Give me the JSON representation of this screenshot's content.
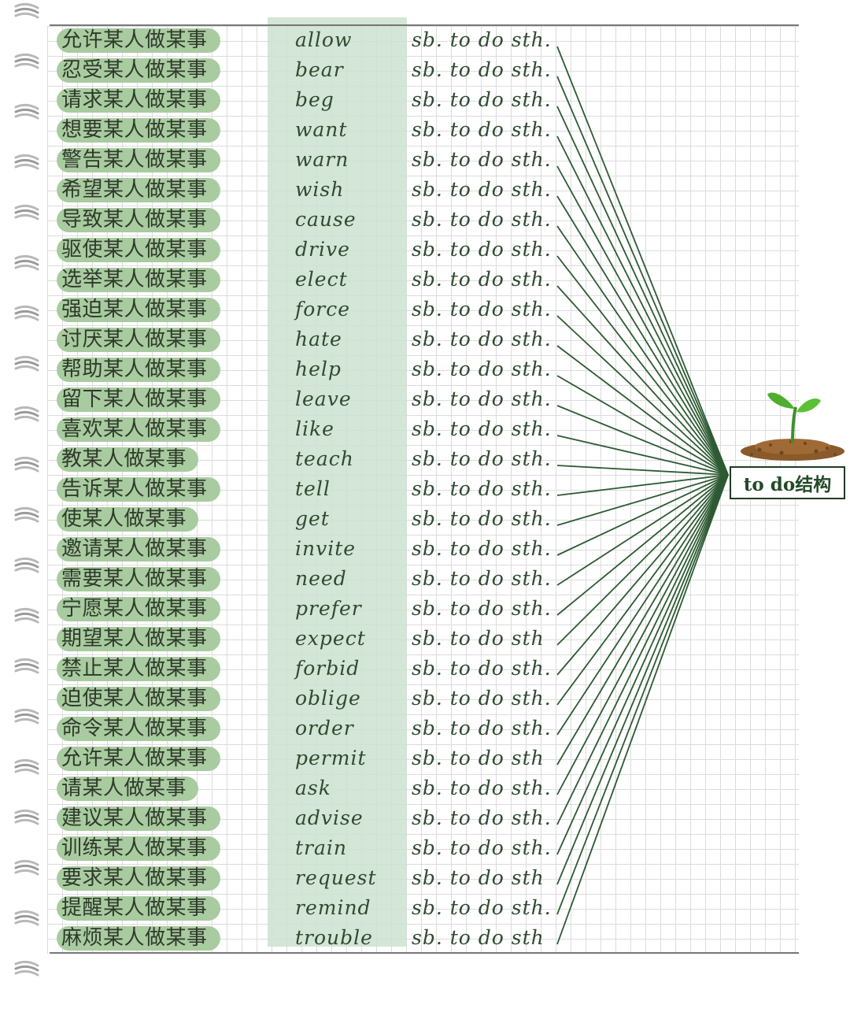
{
  "rows": [
    {
      "cn": "允许某人做某事",
      "verb": "allow",
      "tail": "sb. to do sth."
    },
    {
      "cn": "忍受某人做某事",
      "verb": "bear",
      "tail": "sb. to do sth."
    },
    {
      "cn": "请求某人做某事",
      "verb": "beg",
      "tail": "sb. to do sth."
    },
    {
      "cn": "想要某人做某事",
      "verb": "want",
      "tail": "sb. to do sth."
    },
    {
      "cn": "警告某人做某事",
      "verb": "warn",
      "tail": "sb. to do sth."
    },
    {
      "cn": "希望某人做某事",
      "verb": "wish",
      "tail": "sb. to do sth."
    },
    {
      "cn": "导致某人做某事",
      "verb": "cause",
      "tail": "sb. to do sth."
    },
    {
      "cn": "驱使某人做某事",
      "verb": "drive",
      "tail": "sb. to do sth."
    },
    {
      "cn": "选举某人做某事",
      "verb": "elect",
      "tail": "sb. to do sth."
    },
    {
      "cn": "强迫某人做某事",
      "verb": "force",
      "tail": "sb. to do sth."
    },
    {
      "cn": "讨厌某人做某事",
      "verb": "hate",
      "tail": "sb. to do sth."
    },
    {
      "cn": "帮助某人做某事",
      "verb": "help",
      "tail": "sb. to do sth."
    },
    {
      "cn": "留下某人做某事",
      "verb": "leave",
      "tail": "sb. to do sth."
    },
    {
      "cn": "喜欢某人做某事",
      "verb": "like",
      "tail": "sb. to do sth."
    },
    {
      "cn": "教某人做某事",
      "verb": "teach",
      "tail": "sb. to do sth."
    },
    {
      "cn": "告诉某人做某事",
      "verb": "tell",
      "tail": "sb. to do sth."
    },
    {
      "cn": "使某人做某事",
      "verb": "get",
      "tail": "sb. to do sth."
    },
    {
      "cn": "邀请某人做某事",
      "verb": "invite",
      "tail": "sb. to do sth."
    },
    {
      "cn": "需要某人做某事",
      "verb": "need",
      "tail": "sb. to do sth."
    },
    {
      "cn": "宁愿某人做某事",
      "verb": "prefer",
      "tail": "sb. to do sth."
    },
    {
      "cn": "期望某人做某事",
      "verb": "expect",
      "tail": "sb. to do sth"
    },
    {
      "cn": "禁止某人做某事",
      "verb": "forbid",
      "tail": "sb. to do sth."
    },
    {
      "cn": "迫使某人做某事",
      "verb": "oblige",
      "tail": "sb. to do sth."
    },
    {
      "cn": "命令某人做某事",
      "verb": "order",
      "tail": "sb. to do sth."
    },
    {
      "cn": "允许某人做某事",
      "verb": "permit",
      "tail": "sb. to do sth"
    },
    {
      "cn": "请某人做某事",
      "verb": "ask",
      "tail": "sb. to do sth."
    },
    {
      "cn": "建议某人做某事",
      "verb": "advise",
      "tail": "sb. to do sth."
    },
    {
      "cn": "训练某人做某事",
      "verb": "train",
      "tail": "sb. to do sth."
    },
    {
      "cn": "要求某人做某事",
      "verb": "request",
      "tail": "sb. to do sth"
    },
    {
      "cn": "提醒某人做某事",
      "verb": "remind",
      "tail": "sb. to do sth."
    },
    {
      "cn": "麻烦某人做某事",
      "verb": "trouble",
      "tail": "sb. to do sth"
    }
  ],
  "target_label": "to do结构",
  "colors": {
    "highlight": "#a9cba0",
    "band": "#cde2d0",
    "line": "#2d5a32",
    "text": "#2f4a30"
  }
}
